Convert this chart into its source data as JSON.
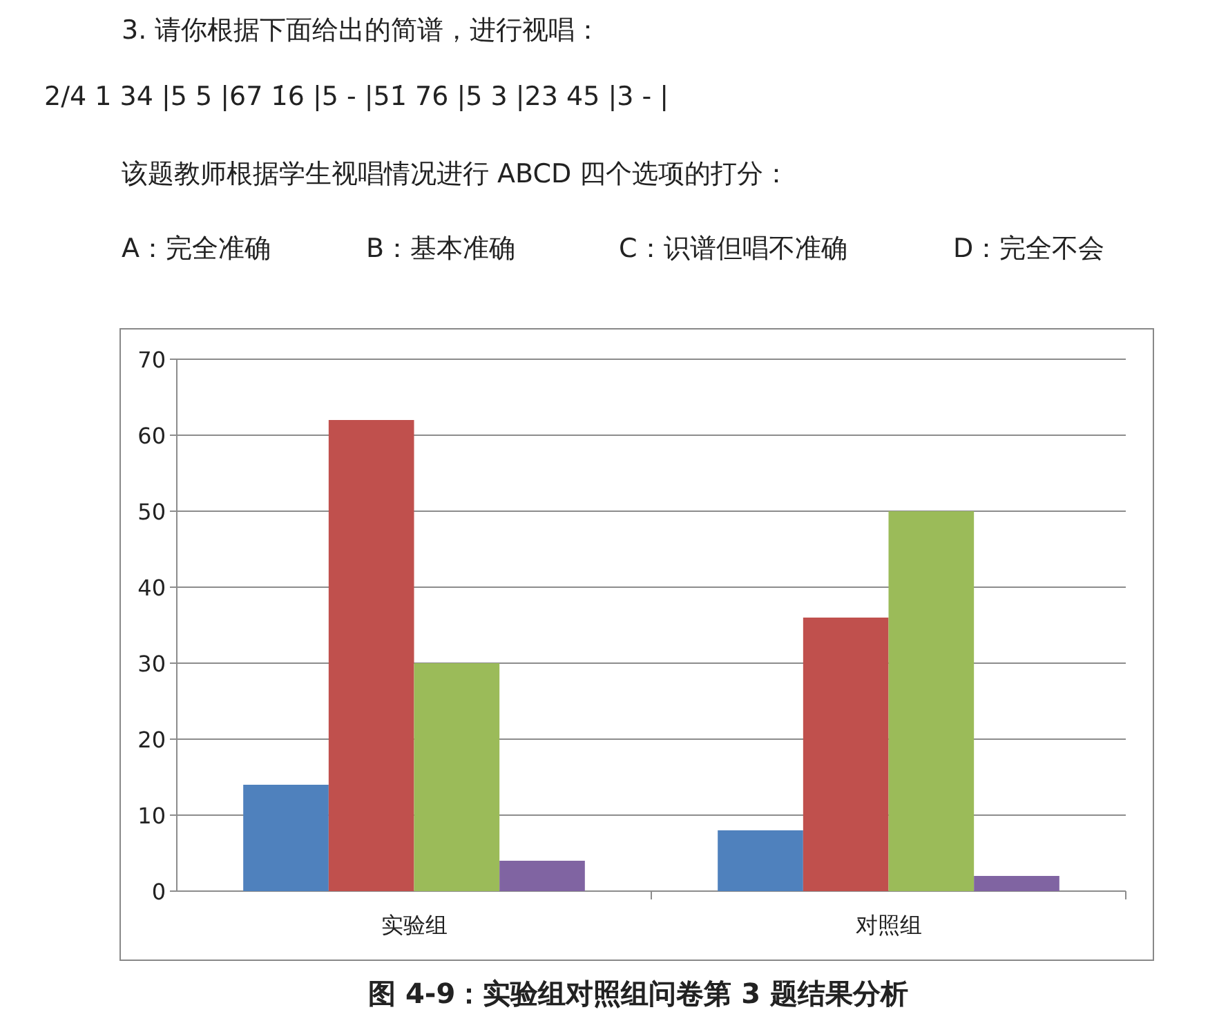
{
  "chart_data": {
    "type": "bar",
    "title": "图 4-9：实验组对照组问卷第 3 题结果分析",
    "annotations": [
      "3. 请你根据下面给出的简谱，进行视唱：",
      "2/4  1  34 |5  5 |67 1̇6 |5  - |51̇ 76 |5  3 |23 45 |3  - |",
      "该题教师根据学生视唱情况进行 ABCD 四个选项的打分：",
      "A：完全准确",
      "B：基本准确",
      "C：识谱但唱不准确",
      "D：完全不会"
    ],
    "categories": [
      "实验组",
      "对照组"
    ],
    "series": [
      {
        "color": "#4f81bd",
        "values": [
          14,
          8
        ]
      },
      {
        "color": "#c0504d",
        "values": [
          62,
          36
        ]
      },
      {
        "color": "#9bbb59",
        "values": [
          30,
          50
        ]
      },
      {
        "color": "#8064a2",
        "values": [
          4,
          2
        ]
      }
    ],
    "ylim": [
      0,
      70
    ],
    "yticks": [
      0,
      10,
      20,
      30,
      40,
      50,
      60,
      70
    ],
    "grid": "y"
  }
}
